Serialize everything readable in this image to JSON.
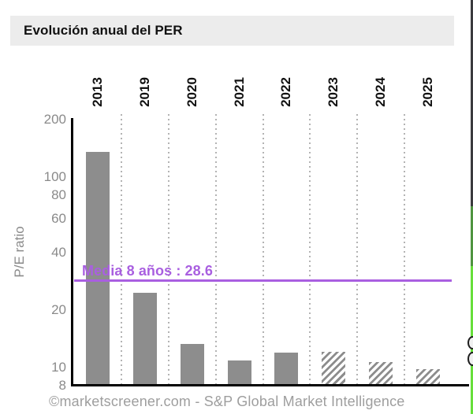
{
  "header": {
    "title": "Evolución anual del PER"
  },
  "footer": {
    "credit": "©marketscreener.com - S&P Global Market Intelligence"
  },
  "chart_data": {
    "type": "bar",
    "title": "Evolución anual del PER",
    "ylabel": "P/E ratio",
    "xlabel": "",
    "categories": [
      "2013",
      "2019",
      "2020",
      "2021",
      "2022",
      "2023",
      "2024",
      "2025"
    ],
    "values": [
      135,
      24.5,
      13.2,
      10.9,
      11.9,
      12.1,
      10.6,
      9.8
    ],
    "hatched": [
      false,
      false,
      false,
      false,
      false,
      true,
      true,
      true
    ],
    "yscale": "log",
    "ylim": [
      8,
      200
    ],
    "yticks": [
      200,
      100,
      80,
      60,
      40,
      20,
      10,
      8
    ],
    "grid": "vertical-dotted",
    "legend_position": "none",
    "mean_line": {
      "label": "Media 8 años : 28.6",
      "value": 28.6
    },
    "colors": {
      "bar": "#8d8d8d",
      "mean": "#a95fe0",
      "tick_text": "#8a8a8a",
      "footer_text": "#9e9e9e",
      "header_bg": "#ececec",
      "axis": "#000000",
      "grid_dots": "#b3b3b3"
    }
  },
  "right_edge_sliver": {
    "description": "cut-off adjacent panel",
    "segment_colors": [
      "#3b3b3e",
      "#4f9440",
      "#67df3a"
    ]
  }
}
